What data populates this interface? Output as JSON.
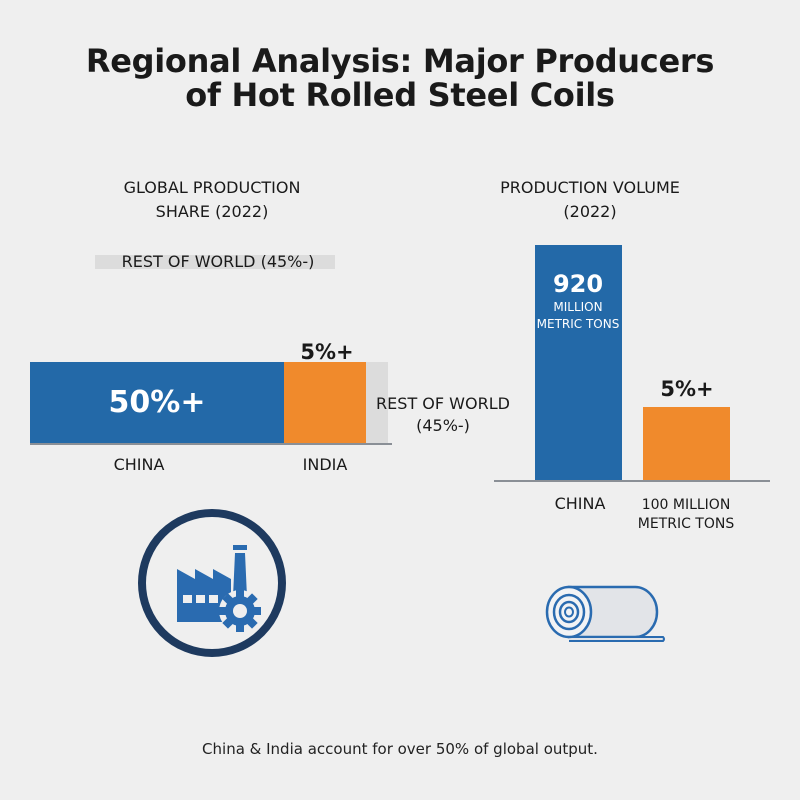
{
  "title": [
    "Regional Analysis: Major Producers",
    "of Hot Rolled Steel Coils"
  ],
  "chart_data": [
    {
      "type": "bar",
      "orientation": "horizontal-stacked",
      "title": [
        "GLOBAL PRODUCTION",
        "SHARE (2022)"
      ],
      "categories": [
        "CHINA",
        "INDIA",
        "REST OF WORLD"
      ],
      "values": [
        50,
        5,
        45
      ],
      "data_labels": [
        "50%+",
        "5%+",
        "REST OF WORLD (45%-)"
      ],
      "legend_label": "REST OF WORLD (45%-)",
      "rest_label": [
        "REST OF WORLD",
        "(45%-)"
      ],
      "colors": [
        "#2369a8",
        "#f08a2c",
        "#dcdcdc"
      ]
    },
    {
      "type": "bar",
      "title": [
        "PRODUCTION VOLUME",
        "(2022)"
      ],
      "categories": [
        "CHINA",
        "INDIA"
      ],
      "values": [
        920,
        100
      ],
      "unit": "MILLION METRIC TONS",
      "china_label": {
        "value": "920",
        "unit": [
          "MILLION",
          "METRIC TONS"
        ]
      },
      "india_top_label": "5%+",
      "x_labels": [
        "CHINA",
        [
          "100 MILLION",
          "METRIC TONS"
        ]
      ],
      "colors": [
        "#2369a8",
        "#f08a2c"
      ]
    }
  ],
  "icons": [
    "factory-gear-icon",
    "steel-coil-icon"
  ],
  "footer": "China & India account for over 50% of global output."
}
